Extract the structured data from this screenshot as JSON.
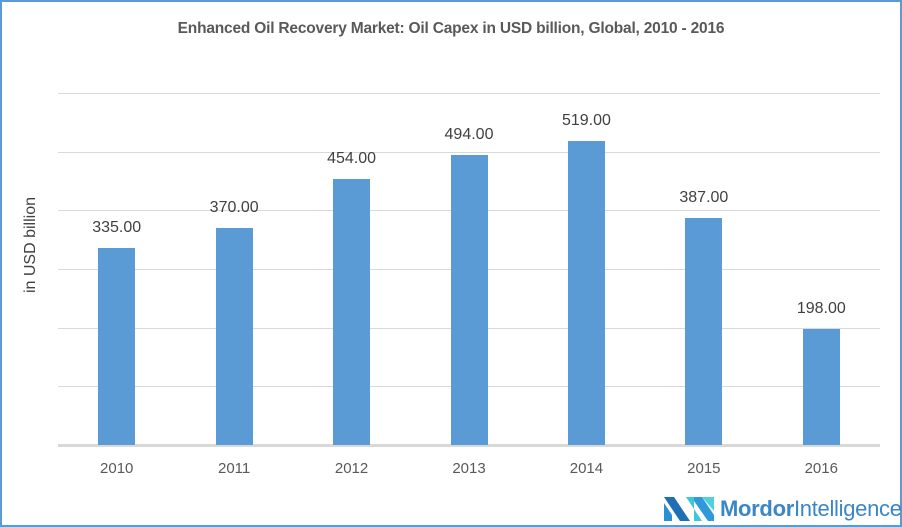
{
  "chart_data": {
    "type": "bar",
    "title": "Enhanced Oil Recovery Market: Oil Capex in USD billion, Global,  2010 - 2016",
    "xlabel": "",
    "ylabel": "in USD billion",
    "categories": [
      "2010",
      "2011",
      "2012",
      "2013",
      "2014",
      "2015",
      "2016"
    ],
    "values": [
      335.0,
      370.0,
      454.0,
      494.0,
      519.0,
      387.0,
      198.0
    ],
    "value_labels": [
      "335.00",
      "370.00",
      "454.00",
      "494.00",
      "519.00",
      "387.00",
      "198.00"
    ],
    "ylim": [
      0,
      600
    ],
    "grid": true,
    "gridline_step": 100,
    "y_tick_labels_visible": false,
    "legend": null,
    "bar_color": "#5b9bd5"
  },
  "branding": {
    "logo_bold": "Mordor",
    "logo_light": "Intelligence"
  },
  "colors": {
    "border": "#5b9bd5",
    "bar": "#5b9bd5",
    "grid": "#d9d9d9",
    "logo_text": "#3a87c8"
  }
}
